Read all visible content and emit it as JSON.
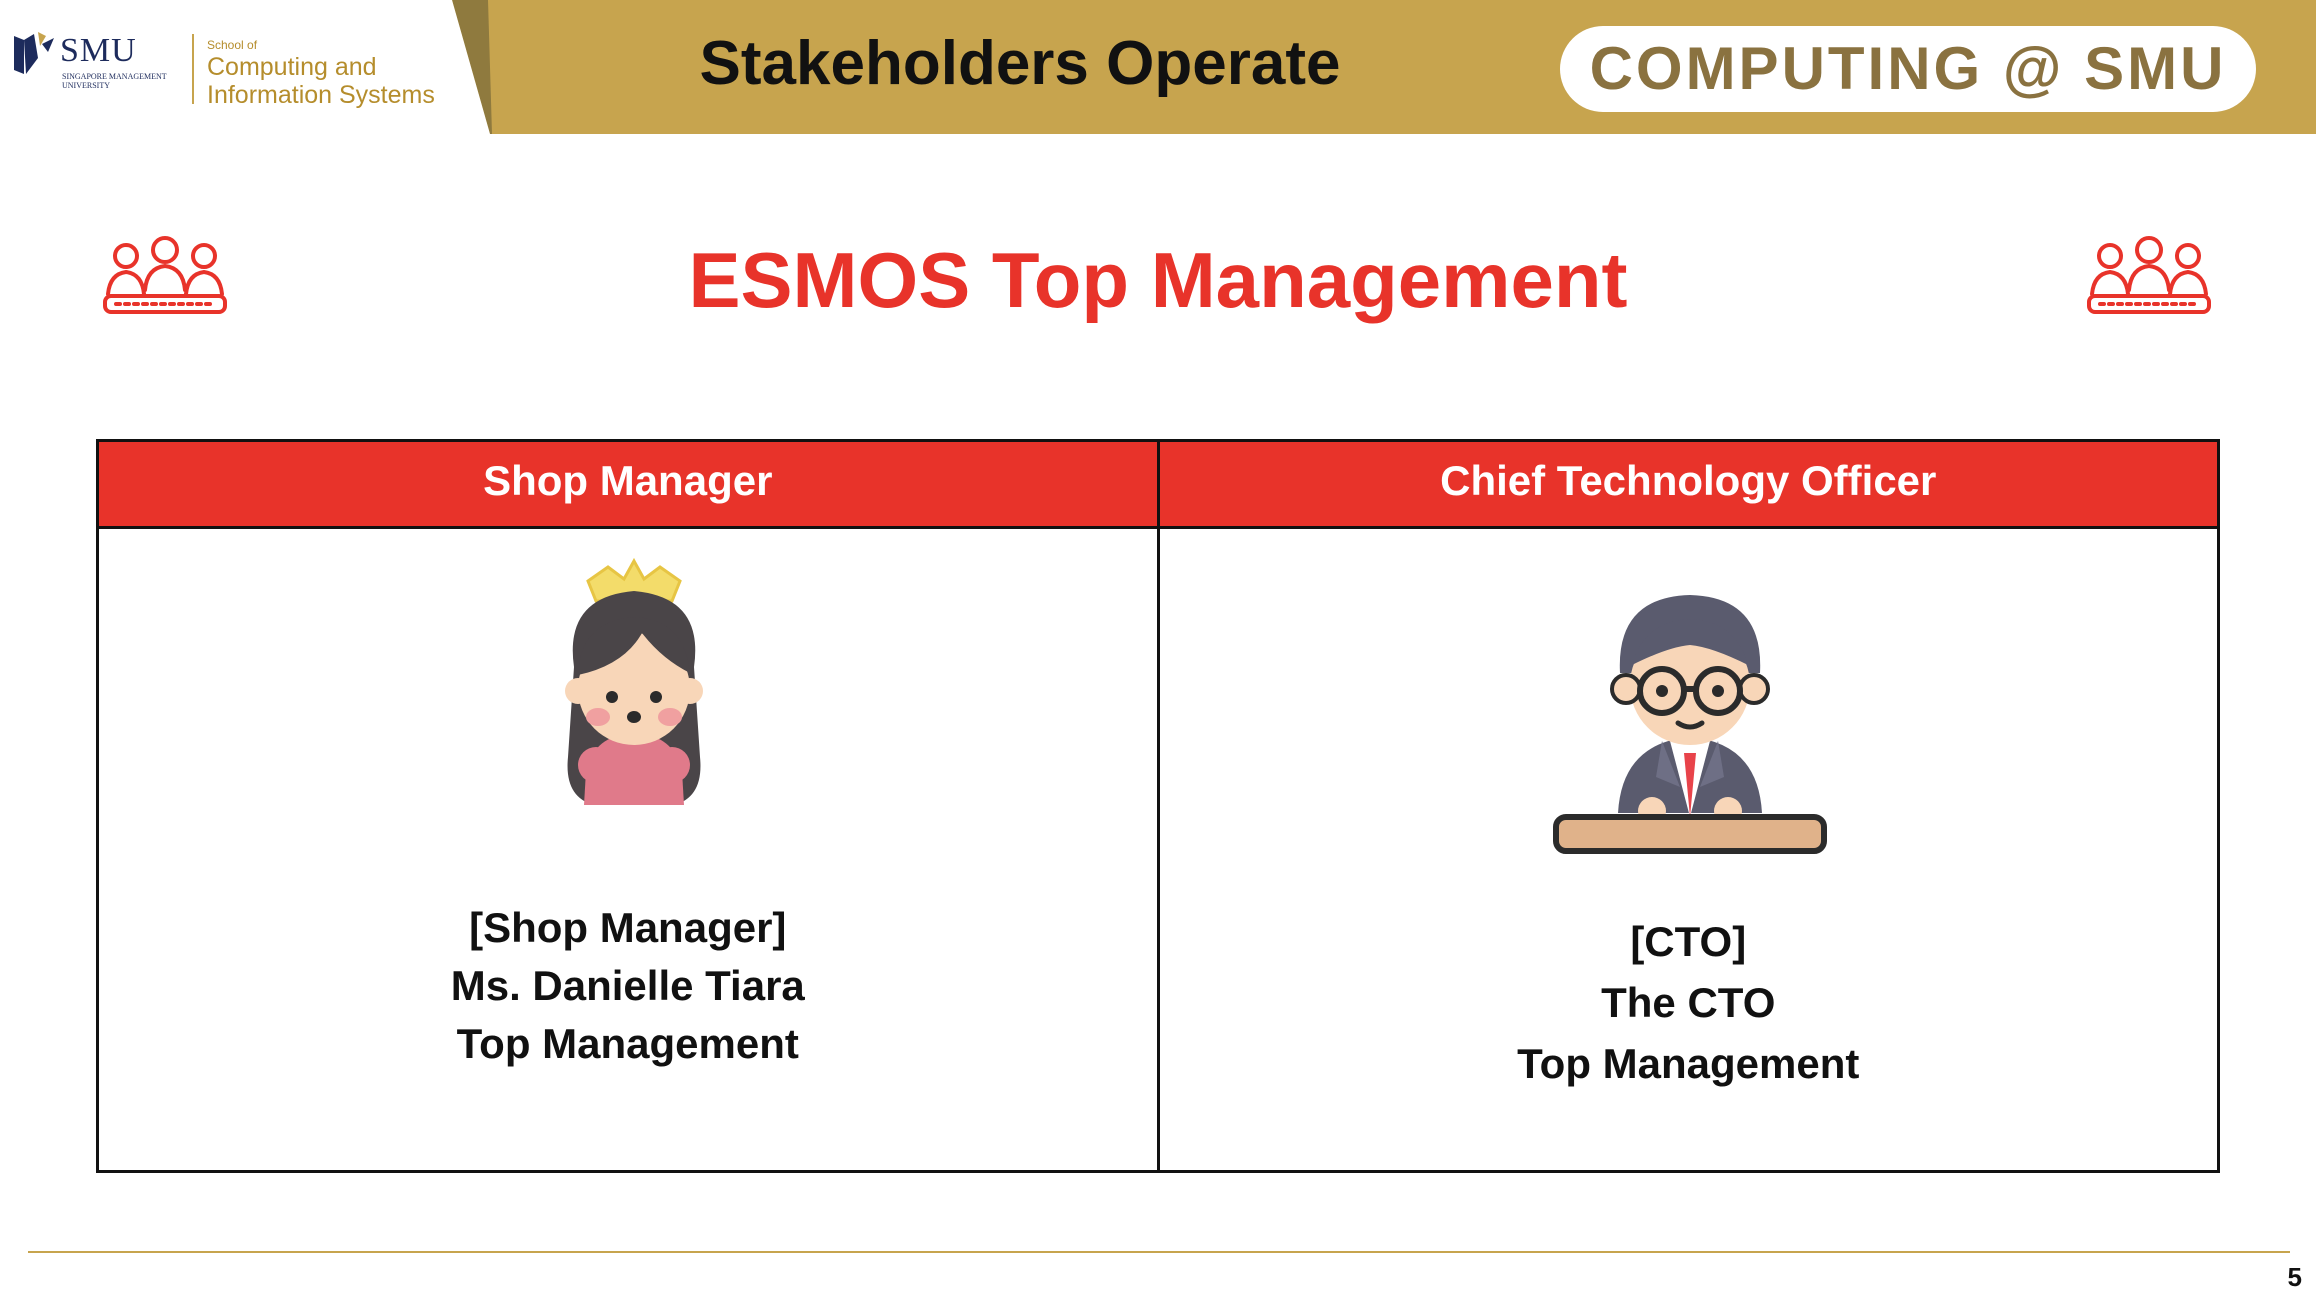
{
  "header": {
    "logo": {
      "name": "SMU",
      "subtitle": "Singapore Management University",
      "school_of": "School of",
      "school_line1": "Computing and",
      "school_line2": "Information Systems"
    },
    "title": "Stakeholders Operate",
    "badge": "COMPUTING @ SMU"
  },
  "slide": {
    "title": "ESMOS Top Management",
    "title_color": "#e8332a",
    "icon_left": "people-group-icon",
    "icon_right": "people-group-icon"
  },
  "table": {
    "header_color": "#e8332a",
    "columns": [
      {
        "header": "Shop Manager",
        "avatar": "queen-avatar-icon",
        "lines": [
          "[Shop Manager]",
          "Ms. Danielle Tiara",
          "Top Management"
        ]
      },
      {
        "header": "Chief Technology Officer",
        "avatar": "executive-at-desk-icon",
        "lines": [
          "[CTO]",
          "The CTO",
          "Top Management"
        ]
      }
    ]
  },
  "footer": {
    "page_number": "5",
    "accent": "#c7a44e"
  }
}
